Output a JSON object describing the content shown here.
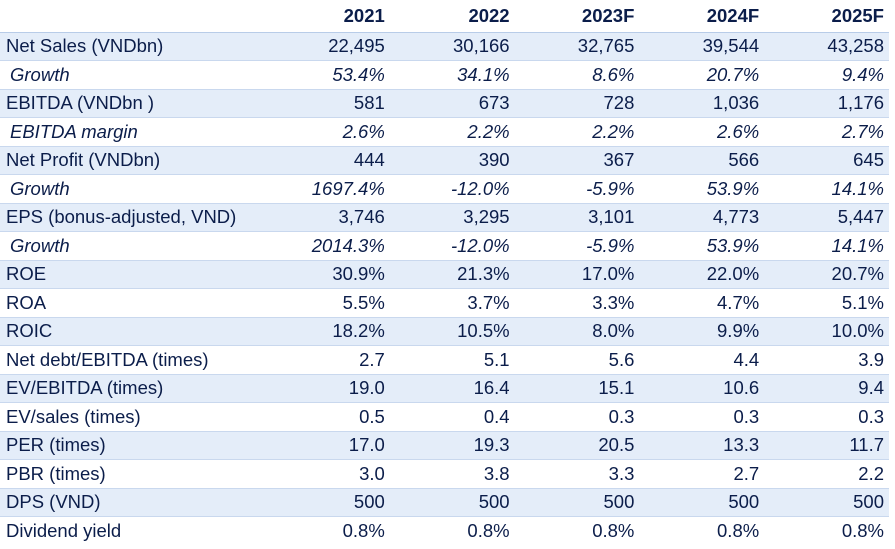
{
  "table": {
    "columns": [
      "2021",
      "2022",
      "2023F",
      "2024F",
      "2025F"
    ],
    "rows": [
      {
        "label": "Net Sales (VNDbn)",
        "italic": false,
        "shaded": true,
        "values": [
          "22,495",
          "30,166",
          "32,765",
          "39,544",
          "43,258"
        ]
      },
      {
        "label": "Growth",
        "italic": true,
        "shaded": false,
        "values": [
          "53.4%",
          "34.1%",
          "8.6%",
          "20.7%",
          "9.4%"
        ]
      },
      {
        "label": "EBITDA (VNDbn )",
        "italic": false,
        "shaded": true,
        "values": [
          "581",
          "673",
          "728",
          "1,036",
          "1,176"
        ]
      },
      {
        "label": "EBITDA margin",
        "italic": true,
        "shaded": false,
        "values": [
          "2.6%",
          "2.2%",
          "2.2%",
          "2.6%",
          "2.7%"
        ]
      },
      {
        "label": "Net Profit (VNDbn)",
        "italic": false,
        "shaded": true,
        "values": [
          "444",
          "390",
          "367",
          "566",
          "645"
        ]
      },
      {
        "label": "Growth",
        "italic": true,
        "shaded": false,
        "values": [
          "1697.4%",
          "-12.0%",
          "-5.9%",
          "53.9%",
          "14.1%"
        ]
      },
      {
        "label": "EPS (bonus-adjusted, VND)",
        "italic": false,
        "shaded": true,
        "values": [
          "3,746",
          "3,295",
          "3,101",
          "4,773",
          "5,447"
        ]
      },
      {
        "label": "Growth",
        "italic": true,
        "shaded": false,
        "values": [
          "2014.3%",
          "-12.0%",
          "-5.9%",
          "53.9%",
          "14.1%"
        ]
      },
      {
        "label": "ROE",
        "italic": false,
        "shaded": true,
        "values": [
          "30.9%",
          "21.3%",
          "17.0%",
          "22.0%",
          "20.7%"
        ]
      },
      {
        "label": "ROA",
        "italic": false,
        "shaded": false,
        "values": [
          "5.5%",
          "3.7%",
          "3.3%",
          "4.7%",
          "5.1%"
        ]
      },
      {
        "label": "ROIC",
        "italic": false,
        "shaded": true,
        "values": [
          "18.2%",
          "10.5%",
          "8.0%",
          "9.9%",
          "10.0%"
        ]
      },
      {
        "label": "Net debt/EBITDA (times)",
        "italic": false,
        "shaded": false,
        "values": [
          "2.7",
          "5.1",
          "5.6",
          "4.4",
          "3.9"
        ]
      },
      {
        "label": "EV/EBITDA (times)",
        "italic": false,
        "shaded": true,
        "values": [
          "19.0",
          "16.4",
          "15.1",
          "10.6",
          "9.4"
        ]
      },
      {
        "label": "EV/sales (times)",
        "italic": false,
        "shaded": false,
        "values": [
          "0.5",
          "0.4",
          "0.3",
          "0.3",
          "0.3"
        ]
      },
      {
        "label": "PER (times)",
        "italic": false,
        "shaded": true,
        "values": [
          "17.0",
          "19.3",
          "20.5",
          "13.3",
          "11.7"
        ]
      },
      {
        "label": "PBR (times)",
        "italic": false,
        "shaded": false,
        "values": [
          "3.0",
          "3.8",
          "3.3",
          "2.7",
          "2.2"
        ]
      },
      {
        "label": "DPS (VND)",
        "italic": false,
        "shaded": true,
        "values": [
          "500",
          "500",
          "500",
          "500",
          "500"
        ]
      },
      {
        "label": "Dividend yield",
        "italic": false,
        "shaded": false,
        "values": [
          "0.8%",
          "0.8%",
          "0.8%",
          "0.8%",
          "0.8%"
        ]
      }
    ]
  },
  "colors": {
    "text": "#0b1d4a",
    "row_shade": "#e4edf9",
    "grid": "#c9d8ee"
  }
}
